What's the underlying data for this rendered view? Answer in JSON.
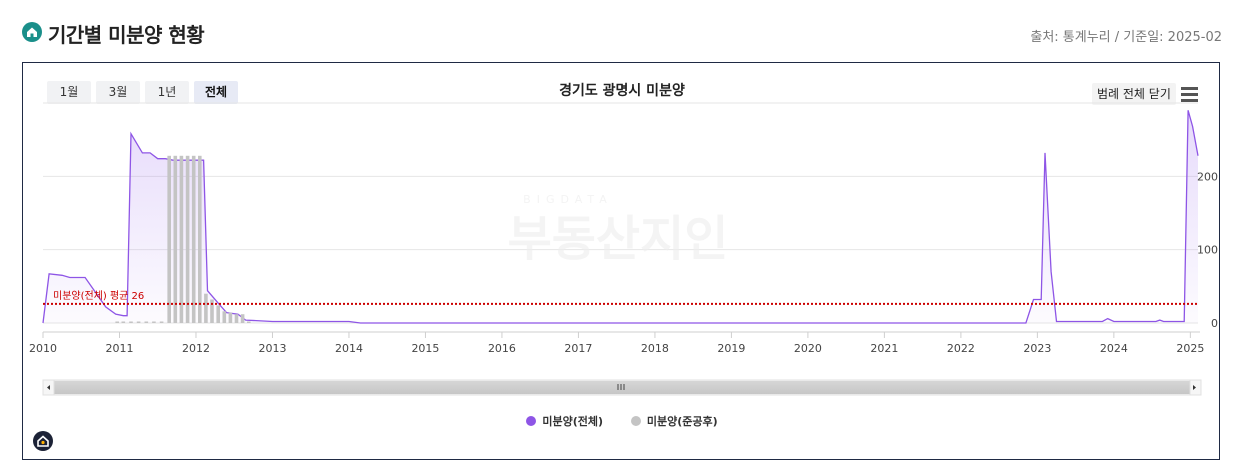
{
  "header": {
    "title": "기간별 미분양 현황",
    "source": "출처: 통계누리 / 기준일: 2025-02"
  },
  "range_buttons": [
    {
      "label": "1월",
      "active": false
    },
    {
      "label": "3월",
      "active": false
    },
    {
      "label": "1년",
      "active": false
    },
    {
      "label": "전체",
      "active": true
    }
  ],
  "legend_toggle_label": "범례 전체 닫기",
  "watermark": {
    "small": "BIGDATA",
    "big": "부동산지인"
  },
  "colors": {
    "total": "#8e55e6",
    "post_completion": "#c4c4c4",
    "average_line": "#cc0000"
  },
  "chart_data": {
    "type": "area",
    "title": "경기도 광명시 미분양",
    "x_axis": {
      "min": 2010,
      "max": 2025.1,
      "ticks": [
        "2010",
        "2011",
        "2012",
        "2013",
        "2014",
        "2015",
        "2016",
        "2017",
        "2018",
        "2019",
        "2020",
        "2021",
        "2022",
        "2023",
        "2024",
        "2025"
      ]
    },
    "y_axis": {
      "position": "right",
      "min": 0,
      "max": 300,
      "ticks": [
        0,
        100,
        200
      ]
    },
    "grid": true,
    "legend_position": "bottom",
    "average": {
      "label": "미분양(전체) 평균 26",
      "value": 26
    },
    "series": [
      {
        "name": "미분양(전체)",
        "style": "area",
        "points": [
          [
            2010.0,
            0
          ],
          [
            2010.08,
            67
          ],
          [
            2010.25,
            65
          ],
          [
            2010.35,
            62
          ],
          [
            2010.55,
            62
          ],
          [
            2010.7,
            40
          ],
          [
            2010.82,
            22
          ],
          [
            2010.95,
            12
          ],
          [
            2011.05,
            10
          ],
          [
            2011.1,
            10
          ],
          [
            2011.15,
            258
          ],
          [
            2011.3,
            232
          ],
          [
            2011.4,
            232
          ],
          [
            2011.5,
            224
          ],
          [
            2011.6,
            224
          ],
          [
            2011.7,
            222
          ],
          [
            2011.85,
            222
          ],
          [
            2012.1,
            222
          ],
          [
            2012.15,
            44
          ],
          [
            2012.3,
            26
          ],
          [
            2012.4,
            14
          ],
          [
            2012.55,
            12
          ],
          [
            2012.65,
            4
          ],
          [
            2013.0,
            2
          ],
          [
            2014.0,
            2
          ],
          [
            2014.15,
            0
          ],
          [
            2022.85,
            0
          ],
          [
            2022.95,
            32
          ],
          [
            2023.05,
            32
          ],
          [
            2023.1,
            232
          ],
          [
            2023.18,
            70
          ],
          [
            2023.25,
            2
          ],
          [
            2023.85,
            2
          ],
          [
            2023.92,
            6
          ],
          [
            2024.0,
            2
          ],
          [
            2024.55,
            2
          ],
          [
            2024.6,
            4
          ],
          [
            2024.65,
            2
          ],
          [
            2024.85,
            2
          ],
          [
            2024.92,
            2
          ],
          [
            2024.97,
            290
          ],
          [
            2025.03,
            268
          ],
          [
            2025.1,
            228
          ]
        ]
      },
      {
        "name": "미분양(준공후)",
        "style": "column",
        "points": [
          [
            2010.97,
            2
          ],
          [
            2011.05,
            2
          ],
          [
            2011.15,
            2
          ],
          [
            2011.25,
            2
          ],
          [
            2011.35,
            2
          ],
          [
            2011.45,
            2
          ],
          [
            2011.55,
            2
          ],
          [
            2011.65,
            228
          ],
          [
            2011.73,
            228
          ],
          [
            2011.81,
            228
          ],
          [
            2011.89,
            228
          ],
          [
            2011.97,
            228
          ],
          [
            2012.05,
            228
          ],
          [
            2012.13,
            40
          ],
          [
            2012.21,
            32
          ],
          [
            2012.29,
            24
          ],
          [
            2012.37,
            16
          ],
          [
            2012.45,
            14
          ],
          [
            2012.53,
            12
          ],
          [
            2012.61,
            12
          ],
          [
            2012.69,
            2
          ]
        ]
      }
    ]
  }
}
